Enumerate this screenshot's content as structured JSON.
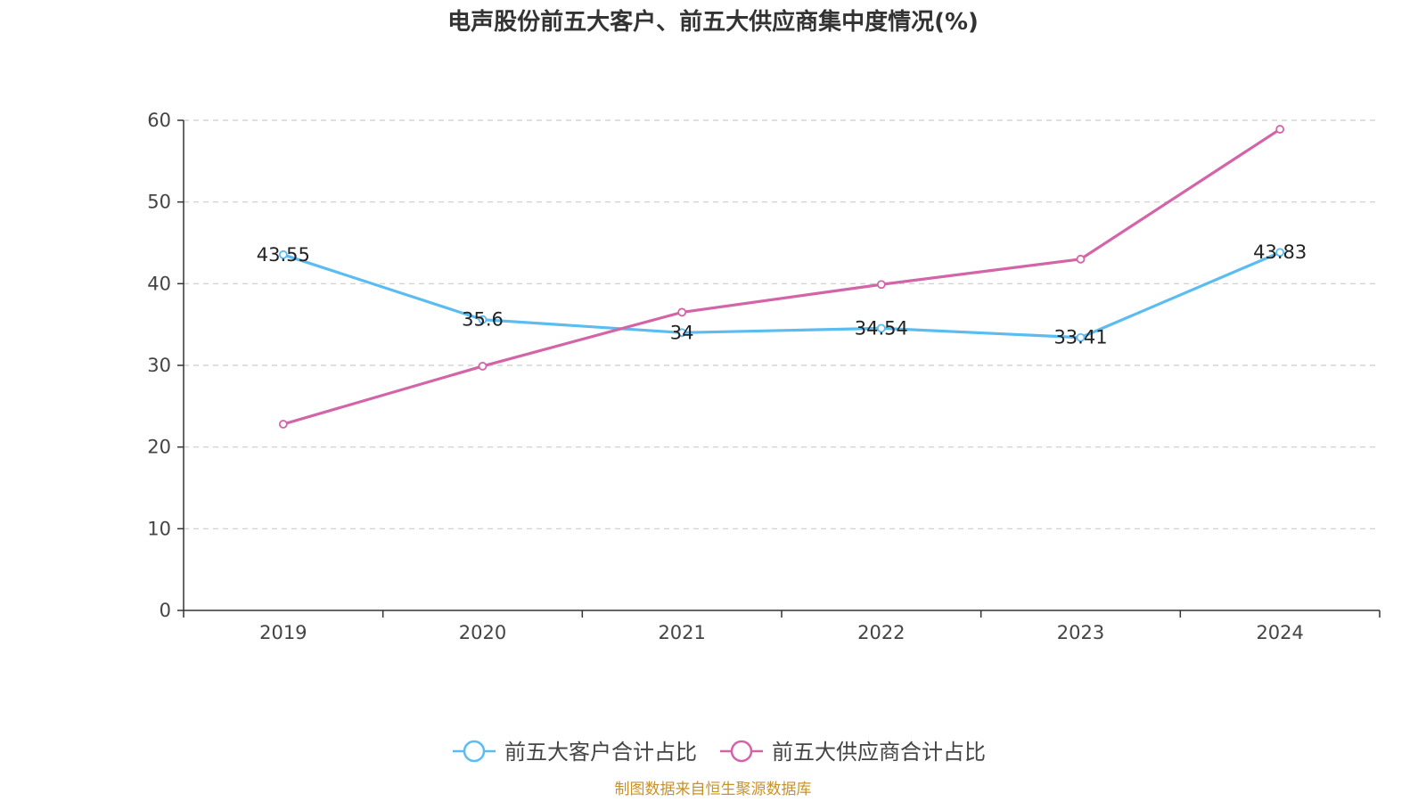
{
  "chart_data": {
    "type": "line",
    "title": "电声股份前五大客户、前五大供应商集中度情况(%)",
    "categories": [
      "2019",
      "2020",
      "2021",
      "2022",
      "2023",
      "2024"
    ],
    "ylim": [
      0,
      60
    ],
    "yticks": [
      0,
      10,
      20,
      30,
      40,
      50,
      60
    ],
    "grid": true,
    "legend_position": "bottom-center",
    "series": [
      {
        "name": "前五大客户合计占比",
        "color": "#5bbcf2",
        "values": [
          43.55,
          35.6,
          34,
          34.54,
          33.41,
          43.83
        ],
        "labels": [
          "43.55",
          "35.6",
          "34",
          "34.54",
          "33.41",
          "43.83"
        ],
        "show_labels": true
      },
      {
        "name": "前五大供应商合计占比",
        "color": "#d364a8",
        "values": [
          22.8,
          29.9,
          36.5,
          39.9,
          43.0,
          58.9
        ],
        "show_labels": false
      }
    ],
    "source": "制图数据来自恒生聚源数据库",
    "source_color": "#c8922a"
  }
}
